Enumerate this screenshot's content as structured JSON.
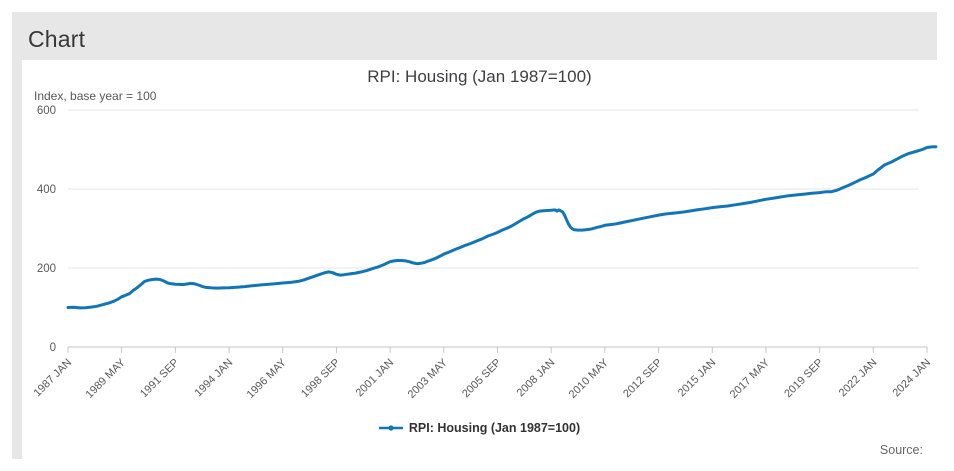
{
  "page": {
    "heading": "Chart",
    "source_label": "Source:"
  },
  "chart": {
    "title": "RPI: Housing (Jan 1987=100)",
    "unit_label": "Index, base year = 100",
    "legend_label": "RPI: Housing (Jan 1987=100)"
  },
  "colors": {
    "line": "#1276b6",
    "grid": "#e4e4e4",
    "axis": "#c6c6c6",
    "tick_text": "#595959",
    "panel": "#e7e7e7"
  },
  "chart_data": {
    "type": "line",
    "title": "RPI: Housing (Jan 1987=100)",
    "xlabel": "",
    "ylabel": "Index, base year = 100",
    "ylim": [
      0,
      600
    ],
    "yticks": [
      0,
      200,
      400,
      600
    ],
    "x_ticklabels": [
      "1987 JAN",
      "1989 MAY",
      "1991 SEP",
      "1994 JAN",
      "1996 MAY",
      "1998 SEP",
      "2001 JAN",
      "2003 MAY",
      "2005 SEP",
      "2008 JAN",
      "2010 MAY",
      "2012 SEP",
      "2015 JAN",
      "2017 MAY",
      "2019 SEP",
      "2022 JAN",
      "2024 JAN"
    ],
    "grid": true,
    "legend_position": "bottom",
    "series": [
      {
        "name": "RPI: Housing (Jan 1987=100)",
        "points": [
          [
            1987.0,
            100
          ],
          [
            1987.25,
            100.5
          ],
          [
            1987.5,
            99
          ],
          [
            1987.75,
            99.5
          ],
          [
            1988.0,
            101
          ],
          [
            1988.25,
            103
          ],
          [
            1988.5,
            107
          ],
          [
            1988.75,
            111
          ],
          [
            1989.0,
            116
          ],
          [
            1989.17,
            121
          ],
          [
            1989.33,
            127
          ],
          [
            1989.5,
            131
          ],
          [
            1989.67,
            135
          ],
          [
            1989.83,
            143
          ],
          [
            1990.0,
            150
          ],
          [
            1990.17,
            158
          ],
          [
            1990.33,
            166
          ],
          [
            1990.5,
            169
          ],
          [
            1990.67,
            171
          ],
          [
            1990.83,
            172
          ],
          [
            1991.0,
            171
          ],
          [
            1991.17,
            167
          ],
          [
            1991.33,
            162
          ],
          [
            1991.5,
            160
          ],
          [
            1991.67,
            159
          ],
          [
            1991.83,
            158.5
          ],
          [
            1992.0,
            158
          ],
          [
            1992.17,
            159.5
          ],
          [
            1992.33,
            161
          ],
          [
            1992.5,
            160
          ],
          [
            1992.67,
            157
          ],
          [
            1992.83,
            153.5
          ],
          [
            1993.0,
            151
          ],
          [
            1993.25,
            149.5
          ],
          [
            1993.5,
            149
          ],
          [
            1993.75,
            149.5
          ],
          [
            1994.0,
            150
          ],
          [
            1994.33,
            151.5
          ],
          [
            1994.67,
            153
          ],
          [
            1995.0,
            155
          ],
          [
            1995.33,
            157
          ],
          [
            1995.67,
            158.5
          ],
          [
            1996.0,
            160
          ],
          [
            1996.33,
            162
          ],
          [
            1996.67,
            163.5
          ],
          [
            1997.0,
            166
          ],
          [
            1997.25,
            170
          ],
          [
            1997.5,
            175
          ],
          [
            1997.75,
            180
          ],
          [
            1998.0,
            185
          ],
          [
            1998.17,
            188
          ],
          [
            1998.33,
            190
          ],
          [
            1998.5,
            188
          ],
          [
            1998.67,
            184
          ],
          [
            1998.83,
            182
          ],
          [
            1999.0,
            183
          ],
          [
            1999.25,
            185
          ],
          [
            1999.5,
            187
          ],
          [
            1999.75,
            190
          ],
          [
            2000.0,
            194
          ],
          [
            2000.25,
            199
          ],
          [
            2000.5,
            203
          ],
          [
            2000.75,
            209
          ],
          [
            2001.0,
            216
          ],
          [
            2001.17,
            218
          ],
          [
            2001.33,
            219
          ],
          [
            2001.5,
            219
          ],
          [
            2001.67,
            218
          ],
          [
            2001.83,
            216
          ],
          [
            2002.0,
            213
          ],
          [
            2002.17,
            211
          ],
          [
            2002.33,
            212
          ],
          [
            2002.5,
            214
          ],
          [
            2002.67,
            218
          ],
          [
            2002.83,
            221
          ],
          [
            2003.0,
            225
          ],
          [
            2003.17,
            230
          ],
          [
            2003.33,
            235
          ],
          [
            2003.5,
            239
          ],
          [
            2003.67,
            243
          ],
          [
            2003.83,
            247
          ],
          [
            2004.0,
            251
          ],
          [
            2004.25,
            257
          ],
          [
            2004.5,
            262
          ],
          [
            2004.75,
            268
          ],
          [
            2005.0,
            274
          ],
          [
            2005.25,
            281
          ],
          [
            2005.5,
            286
          ],
          [
            2005.67,
            290
          ],
          [
            2005.83,
            295
          ],
          [
            2006.0,
            299
          ],
          [
            2006.17,
            303
          ],
          [
            2006.33,
            308
          ],
          [
            2006.5,
            314
          ],
          [
            2006.67,
            320
          ],
          [
            2006.83,
            325
          ],
          [
            2007.0,
            330
          ],
          [
            2007.17,
            336
          ],
          [
            2007.33,
            341
          ],
          [
            2007.5,
            344
          ],
          [
            2007.67,
            345
          ],
          [
            2007.83,
            345.5
          ],
          [
            2008.0,
            346
          ],
          [
            2008.17,
            347
          ],
          [
            2008.25,
            344
          ],
          [
            2008.33,
            347
          ],
          [
            2008.5,
            342
          ],
          [
            2008.58,
            334
          ],
          [
            2008.67,
            322
          ],
          [
            2008.75,
            312
          ],
          [
            2008.83,
            304
          ],
          [
            2008.92,
            299
          ],
          [
            2009.0,
            297
          ],
          [
            2009.17,
            296
          ],
          [
            2009.33,
            296
          ],
          [
            2009.5,
            297
          ],
          [
            2009.67,
            298
          ],
          [
            2009.83,
            300
          ],
          [
            2010.0,
            303
          ],
          [
            2010.17,
            305
          ],
          [
            2010.33,
            308
          ],
          [
            2010.58,
            310
          ],
          [
            2010.83,
            312
          ],
          [
            2011.0,
            314
          ],
          [
            2011.33,
            318
          ],
          [
            2011.67,
            322
          ],
          [
            2012.0,
            326
          ],
          [
            2012.33,
            330
          ],
          [
            2012.67,
            334
          ],
          [
            2013.0,
            337
          ],
          [
            2013.33,
            339
          ],
          [
            2013.67,
            341
          ],
          [
            2014.0,
            344
          ],
          [
            2014.33,
            347
          ],
          [
            2014.67,
            350
          ],
          [
            2015.0,
            353
          ],
          [
            2015.33,
            355
          ],
          [
            2015.67,
            357
          ],
          [
            2016.0,
            360
          ],
          [
            2016.33,
            363
          ],
          [
            2016.67,
            366
          ],
          [
            2017.0,
            370
          ],
          [
            2017.33,
            374
          ],
          [
            2017.67,
            377
          ],
          [
            2018.0,
            380
          ],
          [
            2018.33,
            383
          ],
          [
            2018.67,
            385
          ],
          [
            2019.0,
            387
          ],
          [
            2019.33,
            389
          ],
          [
            2019.67,
            391
          ],
          [
            2019.92,
            393
          ],
          [
            2020.17,
            393
          ],
          [
            2020.42,
            397
          ],
          [
            2020.67,
            403
          ],
          [
            2020.92,
            409
          ],
          [
            2021.17,
            416
          ],
          [
            2021.42,
            423
          ],
          [
            2021.67,
            429
          ],
          [
            2021.92,
            436
          ],
          [
            2022.0,
            438
          ],
          [
            2022.17,
            448
          ],
          [
            2022.42,
            461
          ],
          [
            2022.67,
            468
          ],
          [
            2022.92,
            477
          ],
          [
            2023.08,
            483
          ],
          [
            2023.33,
            490
          ],
          [
            2023.58,
            495
          ],
          [
            2023.83,
            500
          ],
          [
            2024.0,
            505
          ],
          [
            2024.17,
            506.5
          ],
          [
            2024.33,
            507
          ]
        ]
      }
    ]
  }
}
